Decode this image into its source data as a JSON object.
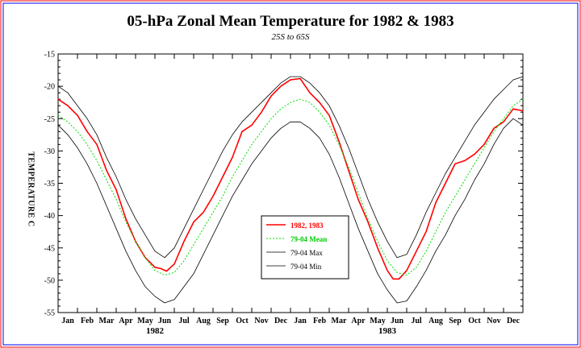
{
  "chart_data": {
    "type": "line",
    "title": "05-hPa Zonal Mean Temperature for 1982 & 1983",
    "subtitle": "25S to 65S",
    "ylabel": "TEMPERATURE C",
    "xlabel": "",
    "ylim": [
      -55,
      -15
    ],
    "yticks": [
      -15,
      -20,
      -25,
      -30,
      -35,
      -40,
      -45,
      -50,
      -55
    ],
    "x_unit": "month",
    "xlim": [
      0,
      24
    ],
    "month_labels": [
      "Jan",
      "Feb",
      "Mar",
      "Apr",
      "May",
      "Jun",
      "Jul",
      "Aug",
      "Sep",
      "Oct",
      "Nov",
      "Dec",
      "Jan",
      "Feb",
      "Mar",
      "Apr",
      "May",
      "Jun",
      "Jul",
      "Aug",
      "Sep",
      "Oct",
      "Nov",
      "Dec"
    ],
    "year_labels": [
      "1982",
      "1983"
    ],
    "legend_placement": "center",
    "grid": false,
    "series": [
      {
        "name": "1982, 1983",
        "color": "#ff0000",
        "x": [
          0,
          0.5,
          1,
          1.5,
          2,
          2.5,
          3,
          3.5,
          4,
          4.5,
          5,
          5.3,
          5.6,
          6,
          6.5,
          7,
          7.5,
          8,
          8.5,
          9,
          9.5,
          10,
          10.5,
          11,
          11.5,
          12,
          12.5,
          13,
          13.5,
          14,
          14.5,
          15,
          15.5,
          16,
          16.5,
          17,
          17.3,
          17.6,
          18,
          18.5,
          19,
          19.5,
          20,
          20.5,
          21,
          21.5,
          22,
          22.5,
          23,
          23.5,
          24
        ],
        "y": [
          -22,
          -23,
          -24.5,
          -27,
          -29,
          -33,
          -36,
          -40.5,
          -44,
          -46.5,
          -48,
          -48.2,
          -48.6,
          -47.5,
          -44,
          -41,
          -39.5,
          -37,
          -34,
          -31,
          -27,
          -26,
          -24,
          -21.5,
          -20,
          -19,
          -18.8,
          -21,
          -22.5,
          -24.5,
          -28.5,
          -33,
          -37.5,
          -41,
          -45,
          -48.5,
          -49.8,
          -49.8,
          -48.5,
          -45.5,
          -42.5,
          -38,
          -35,
          -32,
          -31.5,
          -30.5,
          -29,
          -26.5,
          -25.5,
          -23.5,
          -23.8
        ]
      },
      {
        "name": "79-04 Mean",
        "color": "#00dd00",
        "x": [
          0,
          0.5,
          1,
          1.5,
          2,
          2.5,
          3,
          3.5,
          4,
          4.5,
          5,
          5.5,
          6,
          6.5,
          7,
          7.5,
          8,
          8.5,
          9,
          9.5,
          10,
          10.5,
          11,
          11.5,
          12,
          12.5,
          13,
          13.5,
          14,
          14.5,
          15,
          15.5,
          16,
          16.5,
          17,
          17.5,
          18,
          18.5,
          19,
          19.5,
          20,
          20.5,
          21,
          21.5,
          22,
          22.5,
          23,
          23.5,
          24
        ],
        "y": [
          -24.5,
          -25.5,
          -27,
          -29,
          -31.5,
          -34.5,
          -37.5,
          -41,
          -44,
          -46.5,
          -48.5,
          -49.2,
          -48.8,
          -47,
          -44.5,
          -42,
          -39.5,
          -37,
          -34,
          -31.5,
          -29,
          -27,
          -25,
          -23.5,
          -22.5,
          -22,
          -22.5,
          -24,
          -26,
          -29,
          -32.5,
          -36.5,
          -40.5,
          -44,
          -47,
          -48.8,
          -49.2,
          -48,
          -45.5,
          -42.5,
          -39.5,
          -37,
          -34.5,
          -32,
          -29.5,
          -27,
          -25,
          -23,
          -22
        ]
      },
      {
        "name": "79-04 Max",
        "color": "#000000",
        "x": [
          0,
          0.5,
          1,
          1.5,
          2,
          2.5,
          3,
          3.5,
          4,
          4.5,
          5,
          5.5,
          6,
          6.5,
          7,
          7.5,
          8,
          8.5,
          9,
          9.5,
          10,
          10.5,
          11,
          11.5,
          12,
          12.5,
          13,
          13.5,
          14,
          14.5,
          15,
          15.5,
          16,
          16.5,
          17,
          17.5,
          18,
          18.5,
          19,
          19.5,
          20,
          20.5,
          21,
          21.5,
          22,
          22.5,
          23,
          23.5,
          24
        ],
        "y": [
          -20,
          -21,
          -23,
          -25,
          -27.5,
          -31,
          -34,
          -37.5,
          -40.5,
          -43,
          -45.5,
          -46.5,
          -45,
          -42,
          -39,
          -36,
          -33,
          -30,
          -27.5,
          -25.5,
          -24,
          -22.5,
          -21,
          -19.5,
          -18.5,
          -18.5,
          -19.5,
          -21,
          -23,
          -26,
          -29.5,
          -33.5,
          -37.5,
          -41,
          -44,
          -46.5,
          -46,
          -43,
          -39.5,
          -36.5,
          -33.5,
          -31,
          -28.5,
          -26,
          -24,
          -22,
          -20.5,
          -19,
          -18.5
        ]
      },
      {
        "name": "79-04 Min",
        "color": "#000000",
        "x": [
          0,
          0.5,
          1,
          1.5,
          2,
          2.5,
          3,
          3.5,
          4,
          4.5,
          5,
          5.5,
          6,
          6.5,
          7,
          7.5,
          8,
          8.5,
          9,
          9.5,
          10,
          10.5,
          11,
          11.5,
          12,
          12.5,
          13,
          13.5,
          14,
          14.5,
          15,
          15.5,
          16,
          16.5,
          17,
          17.5,
          18,
          18.5,
          19,
          19.5,
          20,
          20.5,
          21,
          21.5,
          22,
          22.5,
          23,
          23.5,
          24
        ],
        "y": [
          -26,
          -27.5,
          -29.5,
          -32,
          -35,
          -38.5,
          -42,
          -45.5,
          -48.5,
          -51,
          -52.5,
          -53.5,
          -53,
          -51,
          -49,
          -46,
          -43,
          -40,
          -37,
          -34.5,
          -32,
          -30,
          -28,
          -26.5,
          -25.5,
          -25.5,
          -26.5,
          -28,
          -30.5,
          -34,
          -38,
          -42,
          -45.5,
          -49,
          -51.5,
          -53.5,
          -53.2,
          -51,
          -48.5,
          -45.5,
          -43,
          -40,
          -37.5,
          -34.5,
          -32,
          -29,
          -26.5,
          -25,
          -26
        ]
      }
    ]
  }
}
